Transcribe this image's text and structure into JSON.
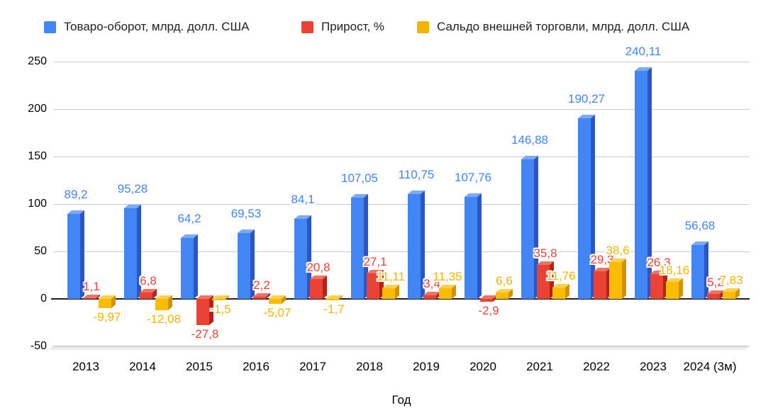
{
  "chart_data": {
    "type": "bar",
    "title": "",
    "xlabel": "Год",
    "ylabel": "",
    "ylim": [
      -50,
      250
    ],
    "ytick_step": 50,
    "yticks": [
      250,
      200,
      150,
      100,
      50,
      0,
      -50
    ],
    "grid": true,
    "legend_position": "top",
    "categories": [
      "2013",
      "2014",
      "2015",
      "2016",
      "2017",
      "2018",
      "2019",
      "2020",
      "2021",
      "2022",
      "2023",
      "2024 (3м)"
    ],
    "series": [
      {
        "name": "Товаро-оборот, млрд. долл. США",
        "color": "#4285F4",
        "values": [
          89.2,
          95.28,
          64.2,
          69.53,
          84.1,
          107.05,
          110.75,
          107.76,
          146.88,
          190.27,
          240.11,
          56.68
        ],
        "labels": [
          "89,2",
          "95,28",
          "64,2",
          "69,53",
          "84,1",
          "107,05",
          "110,75",
          "107,76",
          "146,88",
          "190,27",
          "240,11",
          "56,68"
        ]
      },
      {
        "name": "Прирост, %",
        "color": "#EA4335",
        "values": [
          1.1,
          6.8,
          -27.8,
          2.2,
          20.8,
          27.1,
          3.4,
          -2.9,
          35.8,
          29.3,
          26.3,
          5.2
        ],
        "labels": [
          "1,1",
          "6,8",
          "-27,8",
          "2,2",
          "20,8",
          "27,1",
          "3,4",
          "-2,9",
          "35,8",
          "29,3",
          "26,3",
          "5,2"
        ]
      },
      {
        "name": "Сальдо внешней торговли, млрд. долл. США",
        "color": "#F4B400",
        "values": [
          -9.97,
          -12.08,
          -1.5,
          -5.07,
          -1.7,
          11.11,
          11.35,
          6.6,
          11.76,
          38.6,
          18.16,
          7.83
        ],
        "labels": [
          "-9,97",
          "-12,08",
          "-1,5",
          "-5,07",
          "-1,7",
          "11,11",
          "11,35",
          "6,6",
          "11,76",
          "38,6",
          "18,16",
          "7,83"
        ]
      }
    ]
  }
}
